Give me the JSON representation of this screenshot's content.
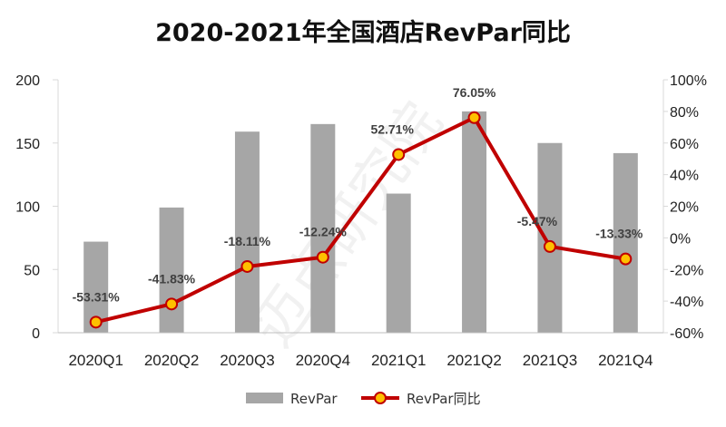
{
  "chart_data": {
    "type": "bar+line",
    "title": "2020-2021年全国酒店RevPar同比",
    "categories": [
      "2020Q1",
      "2020Q2",
      "2020Q3",
      "2020Q4",
      "2021Q1",
      "2021Q2",
      "2021Q3",
      "2021Q4"
    ],
    "series": [
      {
        "name": "RevPar",
        "type": "bar",
        "axis": "left",
        "color": "#a6a6a6",
        "values": [
          72,
          99,
          159,
          165,
          110,
          175,
          150,
          142
        ]
      },
      {
        "name": "RevPar同比",
        "type": "line",
        "axis": "right",
        "color": "#c00000",
        "marker_color": "#ffc000",
        "values": [
          -53.31,
          -41.83,
          -18.11,
          -12.24,
          52.71,
          76.05,
          -5.47,
          -13.33
        ]
      }
    ],
    "data_labels": [
      "-53.31%",
      "-41.83%",
      "-18.11%",
      "-12.24%",
      "52.71%",
      "76.05%",
      "-5.47%",
      "-13.33%"
    ],
    "y_left": {
      "min": 0,
      "max": 200,
      "ticks": [
        "0",
        "50",
        "100",
        "150",
        "200"
      ]
    },
    "y_right": {
      "min": -60,
      "max": 100,
      "ticks": [
        "-60%",
        "-40%",
        "-20%",
        "0%",
        "20%",
        "40%",
        "60%",
        "80%",
        "100%"
      ]
    },
    "legend": [
      "RevPar",
      "RevPar同比"
    ],
    "legend_position": "bottom",
    "watermark": "迈点研究院"
  }
}
